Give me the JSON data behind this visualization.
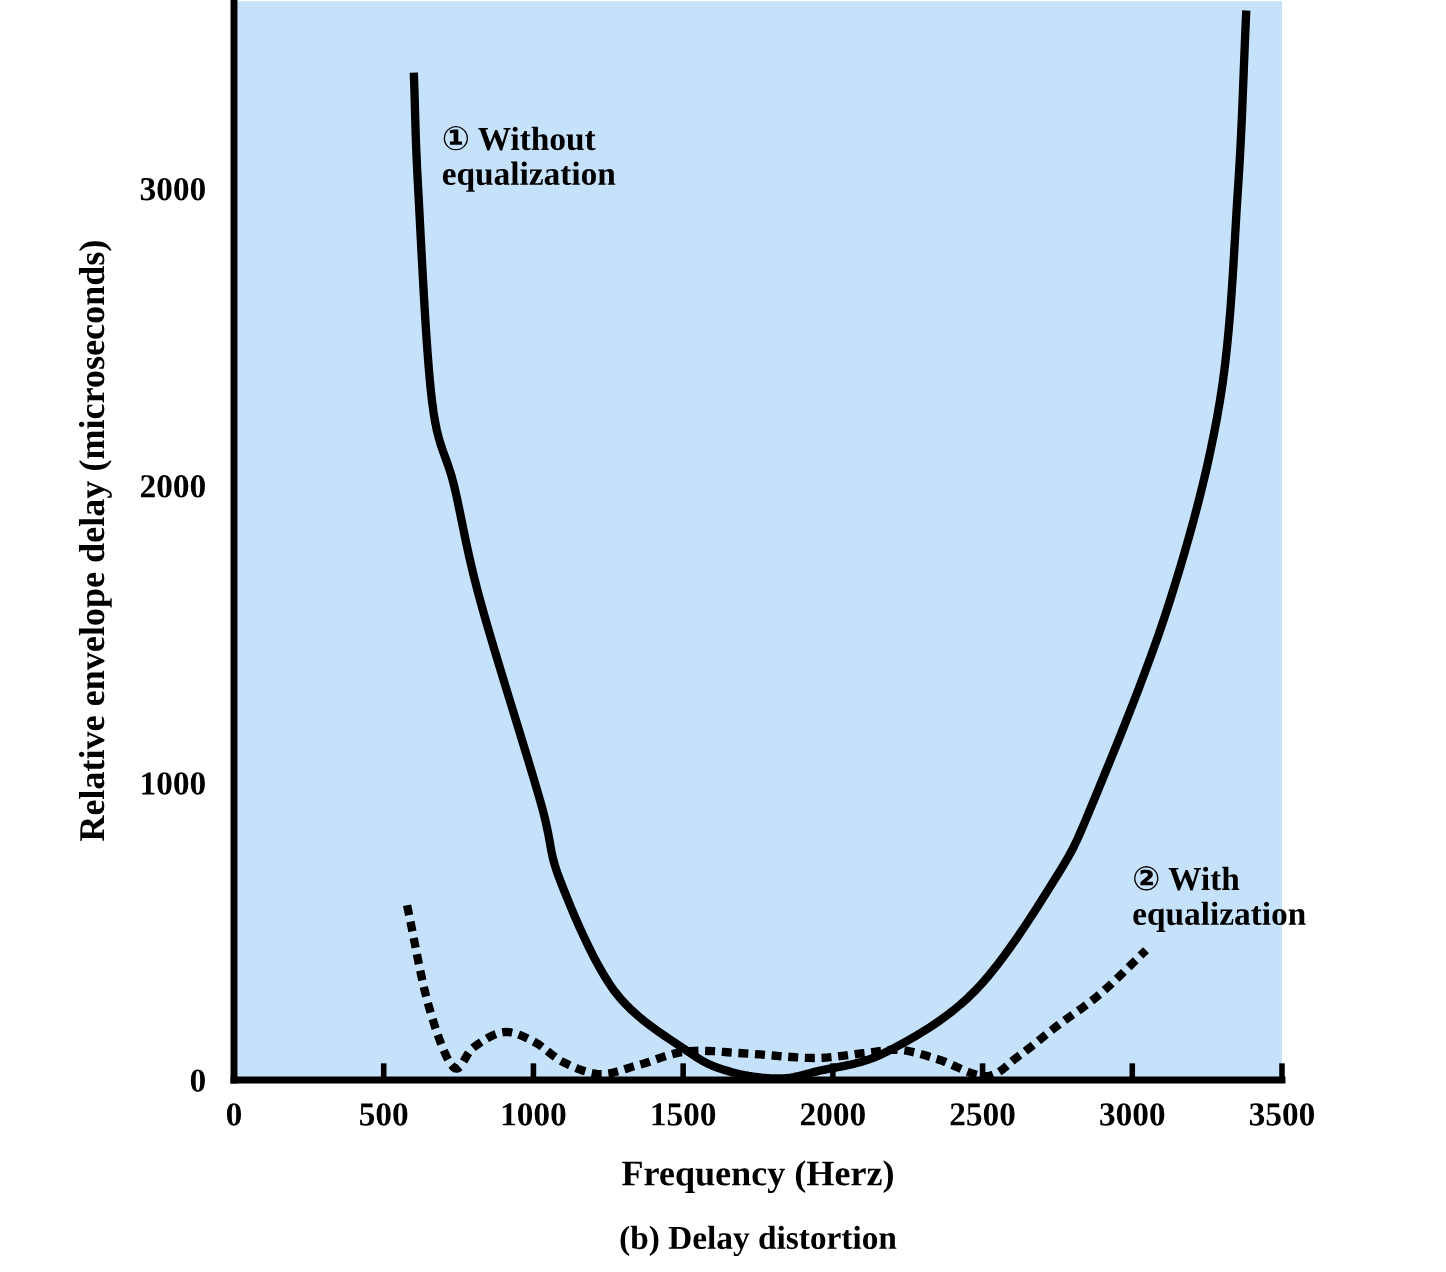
{
  "chart_data": {
    "type": "line",
    "title": "(b) Delay distortion",
    "xlabel": "Frequency (Herz)",
    "ylabel": "Relative envelope delay (microseconds)",
    "xlim": [
      0,
      3500
    ],
    "ylim": [
      0,
      3630
    ],
    "xticks": [
      0,
      500,
      1000,
      1500,
      2000,
      2500,
      3000,
      3500
    ],
    "yticks": [
      0,
      1000,
      2000,
      3000
    ],
    "grid": false,
    "legend": false,
    "series": [
      {
        "name": "① Without\nequalization",
        "color": "#000000",
        "line_style": "solid",
        "x": [
          601,
          615,
          661,
          735,
          822,
          1022,
          1089,
          1270,
          1510,
          1650,
          1817,
          1950,
          2178,
          2475,
          2739,
          2872,
          3126,
          3293,
          3353,
          3380
        ],
        "values": [
          3376,
          3000,
          2287,
          2000,
          1614,
          942,
          672,
          300,
          100,
          30,
          5,
          30,
          94,
          300,
          672,
          942,
          1614,
          2287,
          3000,
          3585
        ]
      },
      {
        "name": "② With\nequalization",
        "color": "#000000",
        "line_style": "dashed",
        "x": [
          578,
          650,
          733,
          800,
          900,
          1000,
          1100,
          1222,
          1350,
          1510,
          1700,
          1937,
          2100,
          2224,
          2350,
          2512,
          2620,
          2749,
          2892,
          3046
        ],
        "values": [
          588,
          250,
          43,
          110,
          161,
          130,
          60,
          20,
          50,
          96,
          90,
          74,
          90,
          101,
          70,
          13,
          80,
          182,
          289,
          437
        ]
      }
    ]
  }
}
